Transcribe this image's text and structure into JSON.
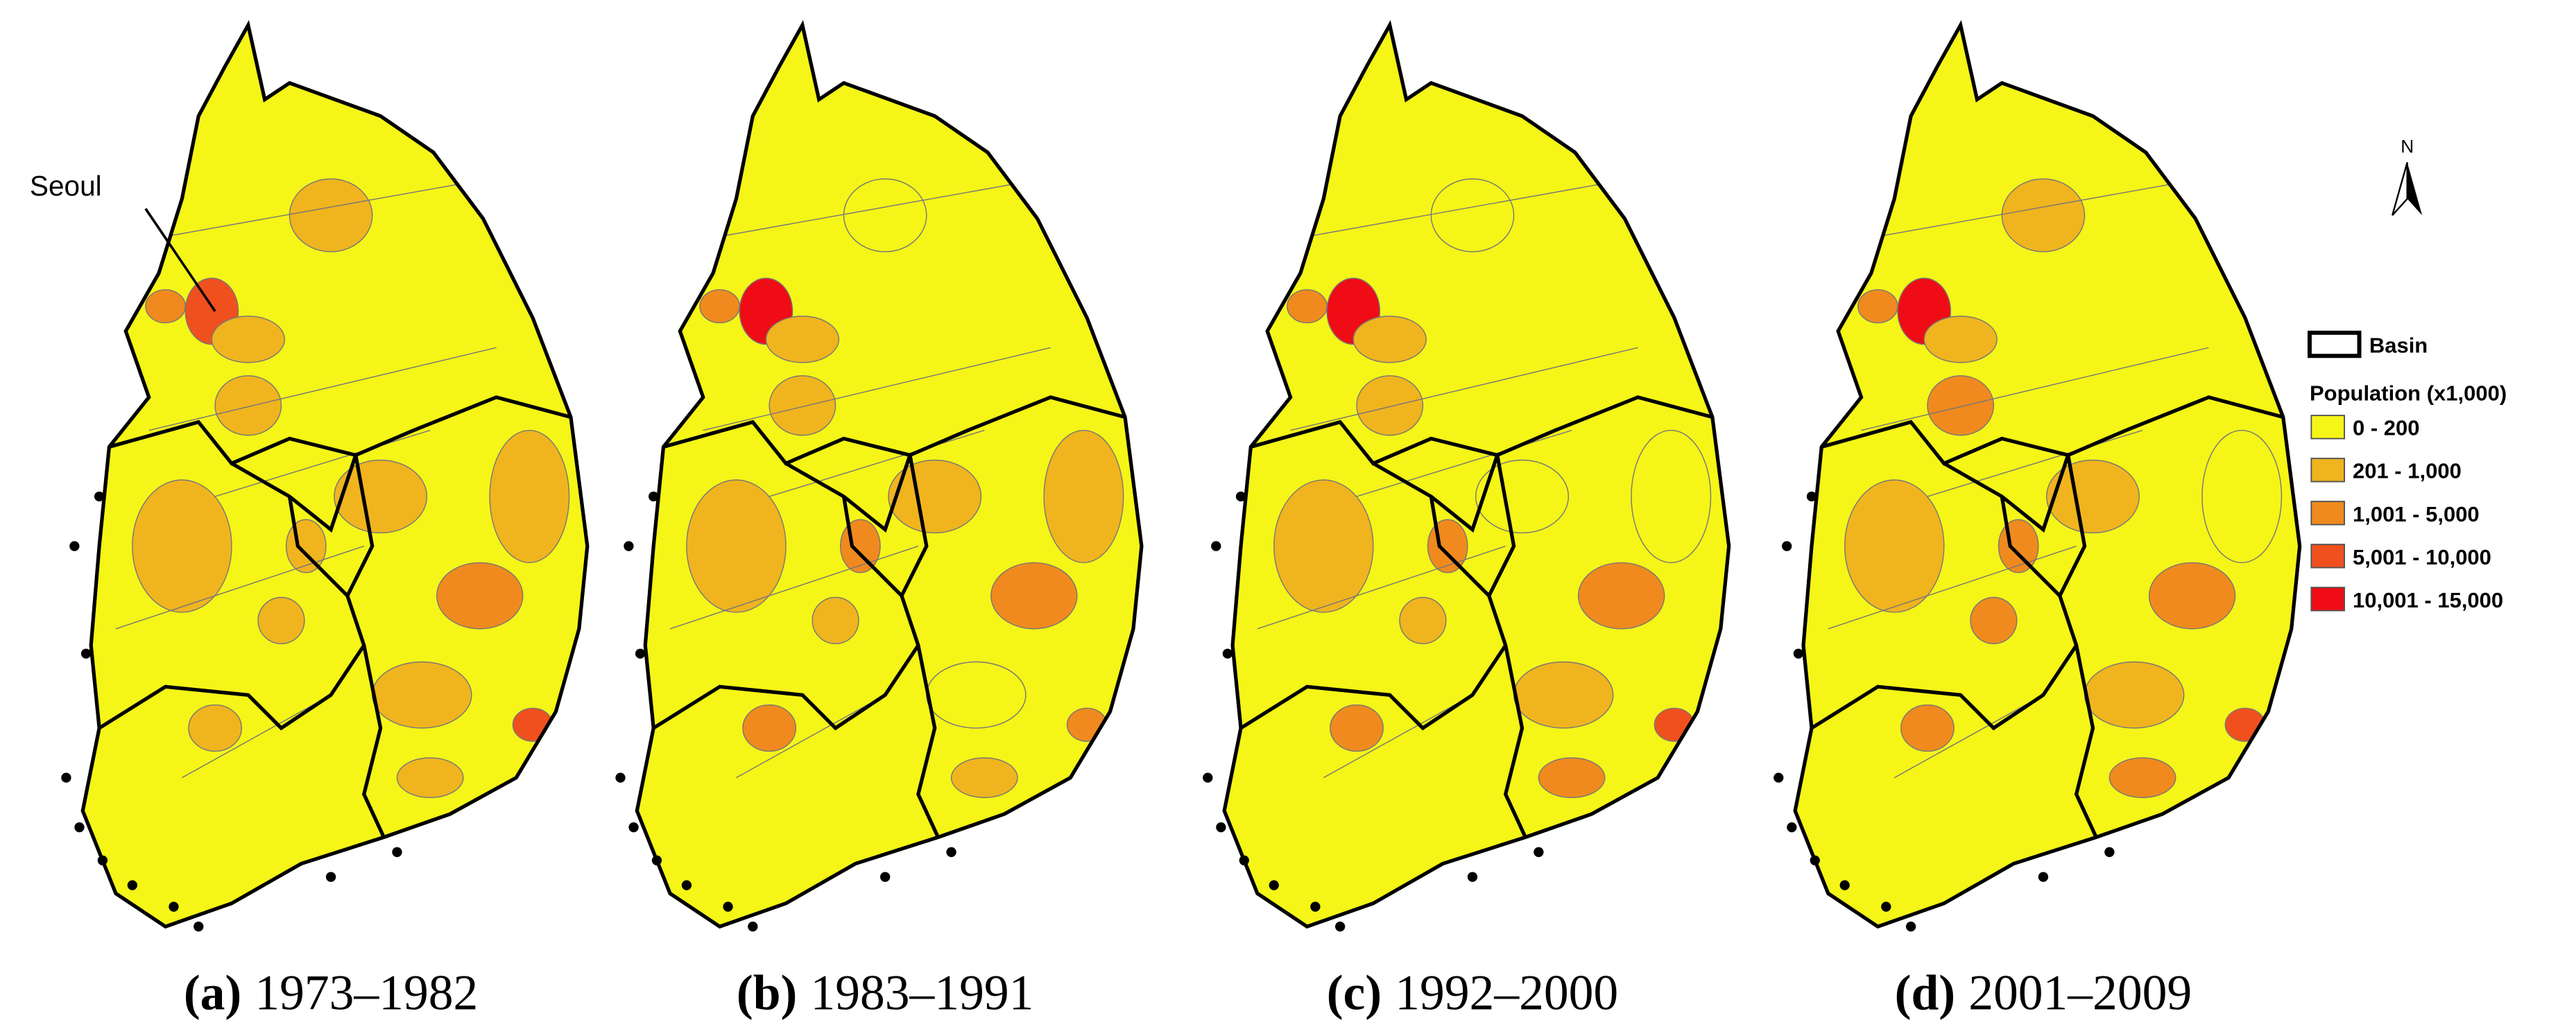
{
  "panels": [
    {
      "letter": "(a)",
      "period": "1973–1982"
    },
    {
      "letter": "(b)",
      "period": "1983–1991"
    },
    {
      "letter": "(c)",
      "period": "1992–2000"
    },
    {
      "letter": "(d)",
      "period": "2001–2009"
    }
  ],
  "annotation": "Seoul",
  "north": "N",
  "legend": {
    "basin": "Basin",
    "title": "Population (x1,000)",
    "classes": [
      {
        "label": "0 - 200",
        "color": "#f5f518"
      },
      {
        "label": "201 - 1,000",
        "color": "#f0b41e"
      },
      {
        "label": "1,001 - 5,000",
        "color": "#f08a1e"
      },
      {
        "label": "5,001 - 10,000",
        "color": "#f0501e"
      },
      {
        "label": "10,001 - 15,000",
        "color": "#f00c14"
      }
    ]
  }
}
